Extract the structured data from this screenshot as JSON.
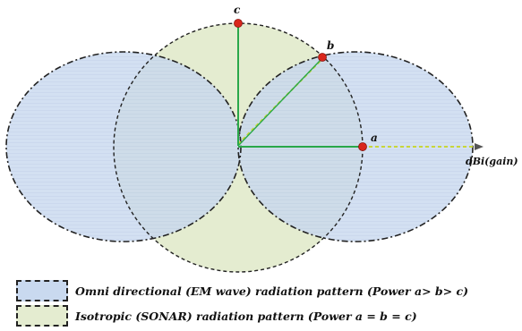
{
  "points": {
    "a": "a",
    "b": "b",
    "c": "c"
  },
  "axis_label": "dBi(gain)",
  "legend": {
    "omni": "Omni directional (EM wave) radiation pattern (Power a> b> c)",
    "isotropic": "Isotropic (SONAR) radiation pattern (Power a = b = c)"
  },
  "colors": {
    "omni_fill": "#c9d9ef",
    "isotropic_fill": "#e4ecd0",
    "overlap_fill": "#c2cfcc",
    "outline": "#222222",
    "radius_line": "#2aa84a",
    "gain_axis": "#c8d63a",
    "point_marker": "#d9261c"
  }
}
